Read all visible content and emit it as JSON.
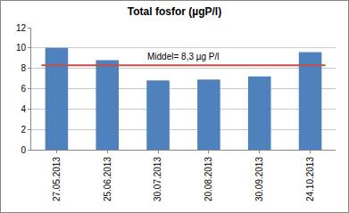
{
  "chart_data": {
    "type": "bar",
    "title": "Total fosfor (µgP/l)",
    "categories": [
      "27.05.2013",
      "25.06.2013",
      "30.07.2013",
      "20.08.2013",
      "30.09.2013",
      "24.10.2013"
    ],
    "values": [
      10.0,
      8.8,
      6.8,
      6.9,
      7.2,
      9.6
    ],
    "color": "#4f81bd",
    "ylim": [
      0,
      12
    ],
    "yticks": [
      0,
      2,
      4,
      6,
      8,
      10,
      12
    ],
    "grid": true,
    "mean_line": {
      "value": 8.3,
      "label": "Middel= 8,3 µg P/l",
      "color": "#c0504d"
    }
  }
}
